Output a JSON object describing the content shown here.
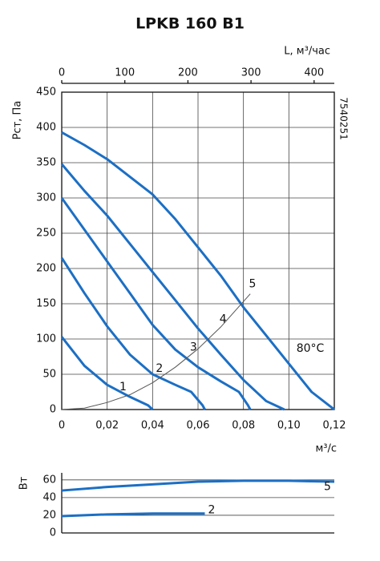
{
  "chart_data": [
    {
      "type": "line",
      "title": "LPKB 160 B1",
      "x_label": "м³/с",
      "y_label": "Pст, Па",
      "x2_label": "L, м³/час",
      "code": "7540251",
      "annotation": "80°C",
      "grid": true,
      "xlim": [
        0,
        0.12
      ],
      "xticks": [
        0,
        {
          "value": 0.02,
          "label": "0,02"
        },
        {
          "value": 0.04,
          "label": "0,04"
        },
        {
          "value": 0.06,
          "label": "0,06"
        },
        {
          "value": 0.08,
          "label": "0,08"
        },
        {
          "value": 0.1,
          "label": "0,10"
        },
        {
          "value": 0.12,
          "label": "0,12"
        }
      ],
      "x2lim": [
        0,
        432
      ],
      "x2ticks": [
        0,
        100,
        200,
        300,
        400
      ],
      "ylim": [
        0,
        450
      ],
      "yticks": [
        0,
        50,
        100,
        150,
        200,
        250,
        300,
        350,
        400,
        450
      ],
      "series": [
        {
          "name": "1",
          "color": "#1c6fc4",
          "x": [
            0,
            0.01,
            0.02,
            0.03,
            0.038,
            0.04
          ],
          "values": [
            103,
            62,
            35,
            18,
            6,
            0
          ]
        },
        {
          "name": "2",
          "color": "#1c6fc4",
          "x": [
            0,
            0.01,
            0.02,
            0.03,
            0.04,
            0.05,
            0.057,
            0.062,
            0.063
          ],
          "values": [
            215,
            165,
            118,
            78,
            50,
            35,
            25,
            6,
            0
          ]
        },
        {
          "name": "3",
          "color": "#1c6fc4",
          "x": [
            0,
            0.01,
            0.02,
            0.03,
            0.04,
            0.05,
            0.06,
            0.07,
            0.078,
            0.082,
            0.083
          ],
          "values": [
            300,
            255,
            210,
            165,
            120,
            85,
            60,
            40,
            25,
            6,
            0
          ]
        },
        {
          "name": "4",
          "color": "#1c6fc4",
          "x": [
            0,
            0.01,
            0.02,
            0.03,
            0.04,
            0.05,
            0.06,
            0.07,
            0.08,
            0.09,
            0.098
          ],
          "values": [
            348,
            310,
            275,
            235,
            195,
            155,
            115,
            78,
            42,
            12,
            0
          ]
        },
        {
          "name": "5",
          "color": "#1c6fc4",
          "x": [
            0,
            0.01,
            0.02,
            0.03,
            0.04,
            0.05,
            0.06,
            0.07,
            0.08,
            0.09,
            0.1,
            0.11,
            0.12
          ],
          "values": [
            393,
            375,
            355,
            330,
            305,
            270,
            230,
            190,
            145,
            105,
            65,
            25,
            0
          ]
        },
        {
          "color": "#555555",
          "x": [
            0,
            0.01,
            0.02,
            0.03,
            0.04,
            0.05,
            0.06,
            0.07,
            0.083
          ],
          "values": [
            0,
            2,
            10,
            21,
            38,
            60,
            86,
            117,
            164
          ]
        }
      ]
    },
    {
      "type": "line",
      "y_label": "Вт",
      "xlim": [
        0,
        0.12
      ],
      "ylim": [
        0,
        68
      ],
      "yticks": [
        0,
        20,
        40,
        60
      ],
      "grid": true,
      "series": [
        {
          "name": "5",
          "color": "#1c6fc4",
          "x": [
            0,
            0.02,
            0.04,
            0.06,
            0.08,
            0.1,
            0.12
          ],
          "values": [
            48,
            52,
            55,
            58,
            59,
            59,
            58
          ]
        },
        {
          "name": "2",
          "color": "#1c6fc4",
          "x": [
            0,
            0.02,
            0.04,
            0.063
          ],
          "values": [
            19,
            21,
            22,
            22
          ]
        }
      ]
    }
  ]
}
